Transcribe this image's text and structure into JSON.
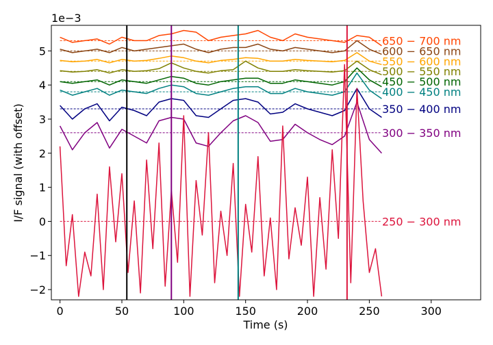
{
  "chart_data": {
    "type": "line",
    "title": "",
    "xlabel": "Time (s)",
    "ylabel": "I/F signal (with offset)",
    "y_multiplier_label": "1e−3",
    "xlim": [
      -7,
      340
    ],
    "ylim": [
      -2.3,
      5.75
    ],
    "x_ticks": [
      0,
      50,
      100,
      150,
      200,
      250,
      300
    ],
    "y_ticks": [
      -2,
      -1,
      0,
      1,
      2,
      3,
      4,
      5
    ],
    "y_tick_labels": [
      "−2",
      "−1",
      "0",
      "1",
      "2",
      "3",
      "4",
      "5"
    ],
    "grid": false,
    "vertical_lines": [
      {
        "x": 54,
        "color": "#000000"
      },
      {
        "x": 90,
        "color": "#800080"
      },
      {
        "x": 144,
        "color": "#008080"
      },
      {
        "x": 232,
        "color": "#DC143C"
      }
    ],
    "series": [
      {
        "name": "650 − 700 nm",
        "color": "#FF4500",
        "offset": 5.3,
        "x": [
          0,
          10,
          20,
          30,
          40,
          50,
          60,
          70,
          80,
          90,
          100,
          110,
          120,
          130,
          140,
          150,
          160,
          170,
          180,
          190,
          200,
          210,
          220,
          230,
          240,
          250,
          260
        ],
        "y": [
          5.4,
          5.25,
          5.3,
          5.35,
          5.2,
          5.4,
          5.3,
          5.3,
          5.45,
          5.5,
          5.6,
          5.55,
          5.3,
          5.4,
          5.45,
          5.5,
          5.6,
          5.4,
          5.3,
          5.5,
          5.4,
          5.35,
          5.3,
          5.25,
          5.45,
          5.4,
          5.15
        ]
      },
      {
        "name": "600 − 650 nm",
        "color": "#8B4513",
        "offset": 5.0,
        "x": [
          0,
          10,
          20,
          30,
          40,
          50,
          60,
          70,
          80,
          90,
          100,
          110,
          120,
          130,
          140,
          150,
          160,
          170,
          180,
          190,
          200,
          210,
          220,
          230,
          240,
          250,
          260
        ],
        "y": [
          5.05,
          4.95,
          5.0,
          5.05,
          4.95,
          5.1,
          5.0,
          5.05,
          5.1,
          5.15,
          5.2,
          5.05,
          4.95,
          5.05,
          5.1,
          5.1,
          5.2,
          5.05,
          5.0,
          5.1,
          5.05,
          5.0,
          4.95,
          5.0,
          5.3,
          5.05,
          4.9
        ]
      },
      {
        "name": "550 − 600 nm",
        "color": "#FFA500",
        "offset": 4.7,
        "x": [
          0,
          10,
          20,
          30,
          40,
          50,
          60,
          70,
          80,
          90,
          100,
          110,
          120,
          130,
          140,
          150,
          160,
          170,
          180,
          190,
          200,
          210,
          220,
          230,
          240,
          250,
          260
        ],
        "y": [
          4.72,
          4.68,
          4.7,
          4.75,
          4.65,
          4.75,
          4.7,
          4.72,
          4.78,
          4.85,
          4.8,
          4.7,
          4.65,
          4.72,
          4.75,
          4.8,
          4.78,
          4.7,
          4.7,
          4.75,
          4.72,
          4.7,
          4.68,
          4.72,
          4.95,
          4.7,
          4.6
        ]
      },
      {
        "name": "500 − 550 nm",
        "color": "#808000",
        "offset": 4.4,
        "x": [
          0,
          10,
          20,
          30,
          40,
          50,
          60,
          70,
          80,
          90,
          100,
          110,
          120,
          130,
          140,
          150,
          160,
          170,
          180,
          190,
          200,
          210,
          220,
          230,
          240,
          250,
          260
        ],
        "y": [
          4.42,
          4.38,
          4.4,
          4.45,
          4.35,
          4.45,
          4.4,
          4.42,
          4.48,
          4.65,
          4.5,
          4.4,
          4.35,
          4.42,
          4.45,
          4.7,
          4.5,
          4.4,
          4.4,
          4.45,
          4.42,
          4.4,
          4.38,
          4.42,
          4.7,
          4.45,
          4.3
        ]
      },
      {
        "name": "450 − 500 nm",
        "color": "#006400",
        "offset": 4.1,
        "x": [
          0,
          10,
          20,
          30,
          40,
          50,
          60,
          70,
          80,
          90,
          100,
          110,
          120,
          130,
          140,
          150,
          160,
          170,
          180,
          190,
          200,
          210,
          220,
          230,
          240,
          250,
          260
        ],
        "y": [
          4.1,
          4.05,
          4.1,
          4.15,
          4.0,
          4.15,
          4.1,
          4.05,
          4.15,
          4.25,
          4.2,
          4.05,
          4.0,
          4.1,
          4.15,
          4.2,
          4.2,
          4.05,
          4.05,
          4.15,
          4.1,
          4.05,
          4.0,
          4.1,
          4.5,
          4.15,
          3.95
        ]
      },
      {
        "name": "400 − 450 nm",
        "color": "#008080",
        "offset": 3.8,
        "x": [
          0,
          10,
          20,
          30,
          40,
          50,
          60,
          70,
          80,
          90,
          100,
          110,
          120,
          130,
          140,
          150,
          160,
          170,
          180,
          190,
          200,
          210,
          220,
          230,
          240,
          250,
          260
        ],
        "y": [
          3.85,
          3.7,
          3.8,
          3.9,
          3.7,
          3.85,
          3.8,
          3.75,
          3.9,
          4.0,
          3.95,
          3.75,
          3.7,
          3.8,
          3.9,
          3.95,
          3.95,
          3.75,
          3.75,
          3.9,
          3.8,
          3.75,
          3.7,
          3.8,
          4.35,
          3.85,
          3.6
        ]
      },
      {
        "name": "350 − 400 nm",
        "color": "#000080",
        "offset": 3.3,
        "x": [
          0,
          10,
          20,
          30,
          40,
          50,
          60,
          70,
          80,
          90,
          100,
          110,
          120,
          130,
          140,
          150,
          160,
          170,
          180,
          190,
          200,
          210,
          220,
          230,
          240,
          250,
          260
        ],
        "y": [
          3.4,
          3.0,
          3.3,
          3.45,
          2.95,
          3.35,
          3.25,
          3.1,
          3.5,
          3.6,
          3.55,
          3.1,
          3.05,
          3.3,
          3.55,
          3.6,
          3.5,
          3.15,
          3.2,
          3.45,
          3.3,
          3.2,
          3.1,
          3.25,
          3.9,
          3.3,
          3.05
        ]
      },
      {
        "name": "300 − 350 nm",
        "color": "#800080",
        "offset": 2.6,
        "x": [
          0,
          10,
          20,
          30,
          40,
          50,
          60,
          70,
          80,
          90,
          100,
          110,
          120,
          130,
          140,
          150,
          160,
          170,
          180,
          190,
          200,
          210,
          220,
          230,
          240,
          250,
          260
        ],
        "y": [
          2.8,
          2.1,
          2.6,
          2.9,
          2.15,
          2.7,
          2.5,
          2.3,
          2.95,
          3.05,
          3.0,
          2.3,
          2.2,
          2.6,
          2.95,
          3.1,
          2.9,
          2.35,
          2.4,
          2.85,
          2.6,
          2.4,
          2.25,
          2.5,
          3.5,
          2.4,
          2.0
        ]
      },
      {
        "name": "250 − 300 nm",
        "color": "#DC143C",
        "offset": 0.0,
        "x": [
          0,
          5,
          10,
          15,
          20,
          25,
          30,
          35,
          40,
          45,
          50,
          55,
          60,
          65,
          70,
          75,
          80,
          85,
          90,
          95,
          100,
          105,
          110,
          115,
          120,
          125,
          130,
          135,
          140,
          145,
          150,
          155,
          160,
          165,
          170,
          175,
          180,
          185,
          190,
          195,
          200,
          205,
          210,
          215,
          220,
          225,
          230,
          235,
          240,
          245,
          250,
          255,
          260
        ],
        "y": [
          2.2,
          -1.3,
          0.2,
          -2.2,
          -0.9,
          -1.6,
          0.8,
          -2.0,
          1.6,
          -0.6,
          1.4,
          -1.5,
          0.6,
          -2.1,
          1.8,
          -0.8,
          2.3,
          -1.9,
          0.9,
          -1.2,
          3.1,
          -2.2,
          1.2,
          -0.4,
          2.6,
          -1.8,
          0.3,
          -1.0,
          1.7,
          -2.2,
          0.5,
          -0.9,
          1.9,
          -1.6,
          0.1,
          -2.0,
          2.8,
          -1.1,
          0.4,
          -0.7,
          1.3,
          -2.2,
          0.7,
          -1.4,
          2.1,
          -0.5,
          4.6,
          -1.8,
          3.9,
          0.6,
          -1.5,
          -0.8,
          -2.2
        ]
      }
    ]
  }
}
